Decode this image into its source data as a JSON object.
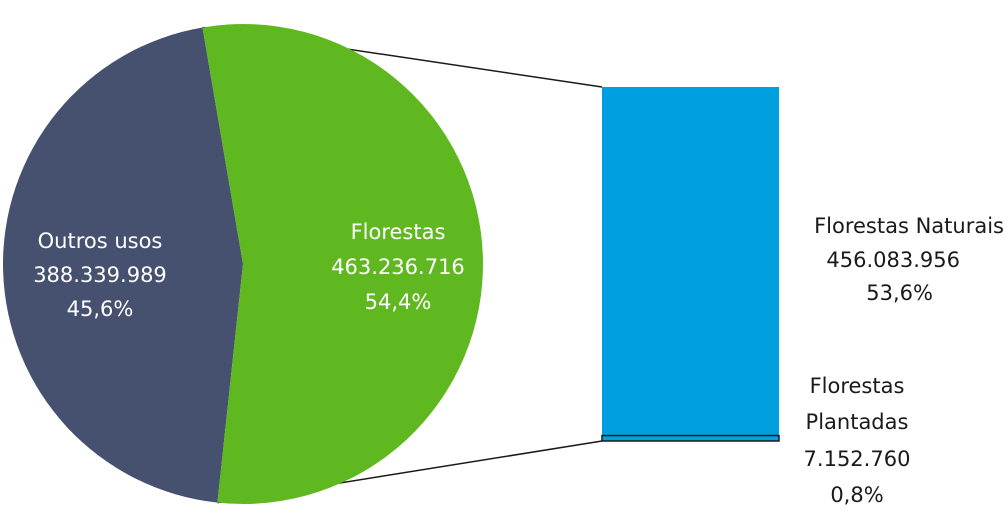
{
  "chart_data": {
    "type": "bar-of-pie",
    "pie": {
      "slices": [
        {
          "label": "Outros usos",
          "value": 388339989,
          "value_text": "388.339.989",
          "percent_text": "45,6%",
          "color": "#465170"
        },
        {
          "label": "Florestas",
          "value": 463236716,
          "value_text": "463.236.716",
          "percent_text": "54,4%",
          "color": "#60b820"
        }
      ]
    },
    "bar": {
      "segments": [
        {
          "label": "Florestas Naturais",
          "value": 456083956,
          "value_text": "456.083.956",
          "percent_text": "53,6%",
          "color": "#00a0e0"
        },
        {
          "label_lines": [
            "Florestas",
            "Plantadas"
          ],
          "value": 7152760,
          "value_text": "7.152.760",
          "percent_text": "0,8%",
          "color": "#00a0e0"
        }
      ]
    },
    "connector_color": "#1a1a1a"
  }
}
